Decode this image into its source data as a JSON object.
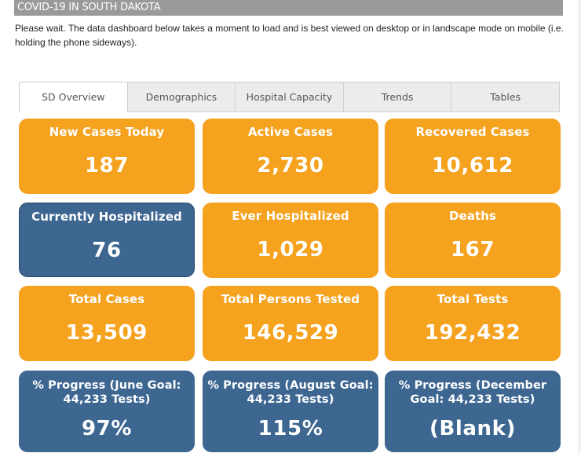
{
  "banner": {
    "title": "COVID-19 IN SOUTH DAKOTA"
  },
  "intro": {
    "text": "Please wait. The data dashboard below takes a moment to load and is best viewed on desktop or in landscape mode on mobile (i.e. holding the phone sideways)."
  },
  "tabs": [
    {
      "label": "SD Overview",
      "active": true
    },
    {
      "label": "Demographics",
      "active": false
    },
    {
      "label": "Hospital Capacity",
      "active": false
    },
    {
      "label": "Trends",
      "active": false
    },
    {
      "label": "Tables",
      "active": false
    }
  ],
  "tiles": {
    "new_cases_today": {
      "label": "New Cases Today",
      "value": "187"
    },
    "active_cases": {
      "label": "Active Cases",
      "value": "2,730"
    },
    "recovered_cases": {
      "label": "Recovered Cases",
      "value": "10,612"
    },
    "currently_hospitalized": {
      "label": "Currently Hospitalized",
      "value": "76"
    },
    "ever_hospitalized": {
      "label": "Ever Hospitalized",
      "value": "1,029"
    },
    "deaths": {
      "label": "Deaths",
      "value": "167"
    },
    "total_cases": {
      "label": "Total Cases",
      "value": "13,509"
    },
    "total_persons_tested": {
      "label": "Total Persons Tested",
      "value": "146,529"
    },
    "total_tests": {
      "label": "Total Tests",
      "value": "192,432"
    },
    "progress_june": {
      "label_line1": "% Progress (June Goal:",
      "label_line2": "44,233 Tests)",
      "value": "97%"
    },
    "progress_august": {
      "label_line1": "% Progress (August Goal:",
      "label_line2": "44,233 Tests)",
      "value": "115%"
    },
    "progress_december": {
      "label_line1": "% Progress (December",
      "label_line2": "Goal: 44,233 Tests)",
      "value": "(Blank)"
    }
  },
  "colors": {
    "orange": "#f5a21f",
    "blue": "#3d6691",
    "banner": "#9a9a9a"
  }
}
